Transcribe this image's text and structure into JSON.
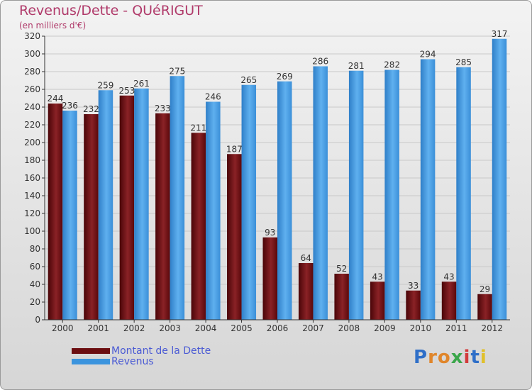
{
  "header": {
    "title": "Revenus/Dette - QUéRIGUT",
    "subtitle": "(en milliers d'€)"
  },
  "legend": {
    "items": [
      {
        "label": "Montant de la Dette",
        "color": "#6b0d10"
      },
      {
        "label": "Revenus",
        "color": "#3b94de"
      }
    ]
  },
  "logo": {
    "text": "Proxiti",
    "letters": [
      {
        "ch": "P",
        "color": "#2f6fc8"
      },
      {
        "ch": "r",
        "color": "#e0862b"
      },
      {
        "ch": "o",
        "color": "#e0862b"
      },
      {
        "ch": "x",
        "color": "#3aa64a"
      },
      {
        "ch": "i",
        "color": "#d23b3b"
      },
      {
        "ch": "t",
        "color": "#2f6fc8"
      },
      {
        "ch": "i",
        "color": "#e0c02b"
      }
    ]
  },
  "chart_data": {
    "type": "bar",
    "title": "Revenus/Dette - QUéRIGUT",
    "subtitle": "(en milliers d'€)",
    "xlabel": "",
    "ylabel": "",
    "categories": [
      "2000",
      "2001",
      "2002",
      "2003",
      "2004",
      "2005",
      "2006",
      "2007",
      "2008",
      "2009",
      "2010",
      "2011",
      "2012"
    ],
    "series": [
      {
        "name": "Montant de la Dette",
        "color": "#6b0d10",
        "values": [
          244,
          232,
          253,
          233,
          211,
          187,
          93,
          64,
          52,
          43,
          33,
          43,
          29
        ]
      },
      {
        "name": "Revenus",
        "color": "#3b94de",
        "values": [
          236,
          259,
          261,
          275,
          246,
          265,
          269,
          286,
          281,
          282,
          294,
          285,
          317
        ]
      }
    ],
    "ylim": [
      0,
      320
    ],
    "yticks": [
      0,
      20,
      40,
      60,
      80,
      100,
      120,
      140,
      160,
      180,
      200,
      220,
      240,
      260,
      280,
      300,
      320
    ],
    "grid": true,
    "legend_position": "bottom-left"
  }
}
